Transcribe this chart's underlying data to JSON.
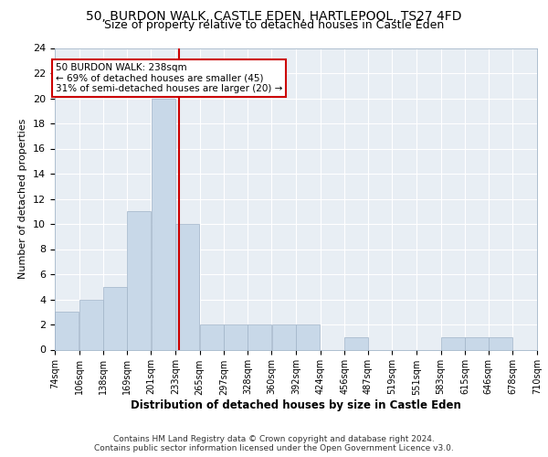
{
  "title_line1": "50, BURDON WALK, CASTLE EDEN, HARTLEPOOL, TS27 4FD",
  "title_line2": "Size of property relative to detached houses in Castle Eden",
  "xlabel": "Distribution of detached houses by size in Castle Eden",
  "ylabel": "Number of detached properties",
  "bin_edges": [
    74,
    106,
    138,
    169,
    201,
    233,
    265,
    297,
    328,
    360,
    392,
    424,
    456,
    487,
    519,
    551,
    583,
    615,
    646,
    678,
    710
  ],
  "bar_heights": [
    3,
    4,
    5,
    11,
    20,
    10,
    2,
    2,
    2,
    2,
    2,
    0,
    1,
    0,
    0,
    0,
    1,
    1,
    1,
    0
  ],
  "bar_color": "#c8d8e8",
  "bar_edge_color": "#a0b4c8",
  "property_size": 238,
  "vline_color": "#cc0000",
  "annotation_text": "50 BURDON WALK: 238sqm\n← 69% of detached houses are smaller (45)\n31% of semi-detached houses are larger (20) →",
  "annotation_box_color": "white",
  "annotation_box_edge": "#cc0000",
  "ylim": [
    0,
    24
  ],
  "yticks": [
    0,
    2,
    4,
    6,
    8,
    10,
    12,
    14,
    16,
    18,
    20,
    22,
    24
  ],
  "background_color": "#e8eef4",
  "footer_line1": "Contains HM Land Registry data © Crown copyright and database right 2024.",
  "footer_line2": "Contains public sector information licensed under the Open Government Licence v3.0.",
  "tick_label_fontsize": 7,
  "ylabel_fontsize": 8,
  "xlabel_fontsize": 8.5,
  "title_fontsize1": 10,
  "title_fontsize2": 9,
  "footer_fontsize": 6.5,
  "annotation_fontsize": 7.5
}
